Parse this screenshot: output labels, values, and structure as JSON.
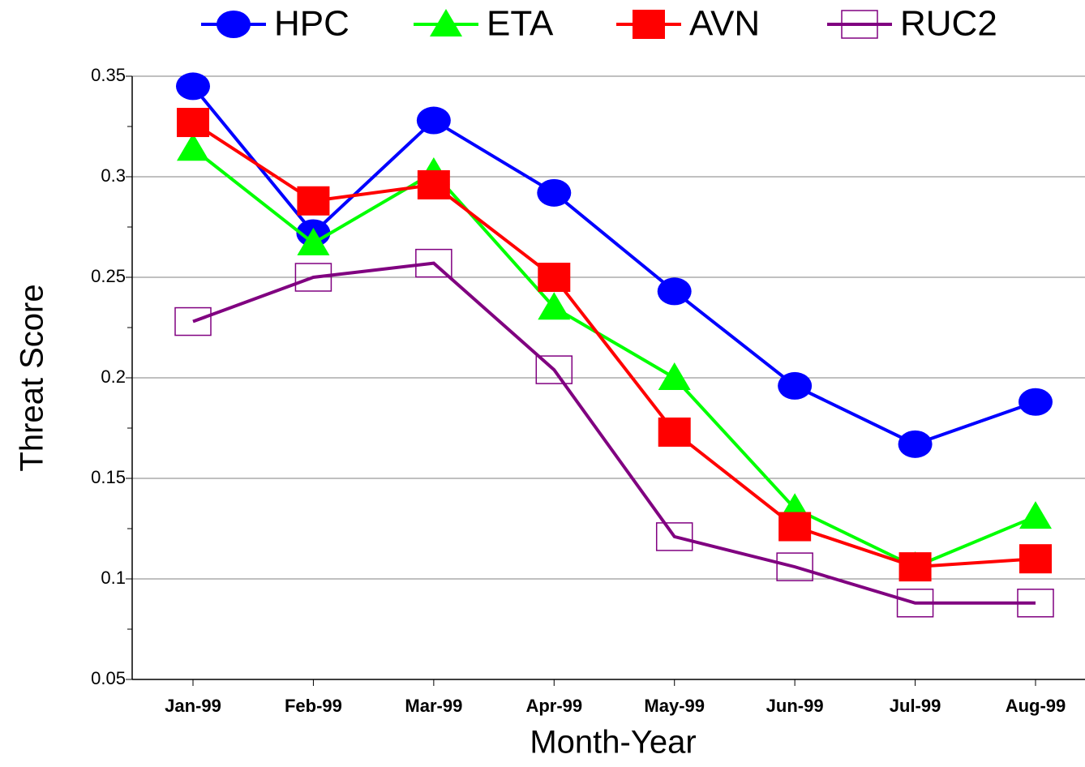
{
  "chart_data": {
    "type": "line",
    "x_label": "Month-Year",
    "y_label": "Threat Score",
    "categories": [
      "Jan-99",
      "Feb-99",
      "Mar-99",
      "Apr-99",
      "May-99",
      "Jun-99",
      "Jul-99",
      "Aug-99"
    ],
    "series": [
      {
        "name": "HPC",
        "color": "#0000ff",
        "marker": "circle",
        "values": [
          0.345,
          0.272,
          0.328,
          0.292,
          0.243,
          0.196,
          0.167,
          0.188
        ]
      },
      {
        "name": "ETA",
        "color": "#00ff00",
        "marker": "triangle",
        "values": [
          0.314,
          0.267,
          0.302,
          0.235,
          0.2,
          0.135,
          0.106,
          0.131
        ]
      },
      {
        "name": "AVN",
        "color": "#ff0000",
        "marker": "square",
        "values": [
          0.327,
          0.288,
          0.296,
          0.25,
          0.173,
          0.126,
          0.106,
          0.11
        ]
      },
      {
        "name": "RUC2",
        "color": "#800080",
        "marker": "open-square",
        "values": [
          0.228,
          0.25,
          0.257,
          0.204,
          0.121,
          0.106,
          0.088,
          0.088
        ]
      }
    ],
    "ylim": [
      0.05,
      0.35
    ],
    "yticks": [
      0.05,
      0.1,
      0.15,
      0.2,
      0.25,
      0.3,
      0.35
    ],
    "grid": true,
    "legend": "top"
  }
}
